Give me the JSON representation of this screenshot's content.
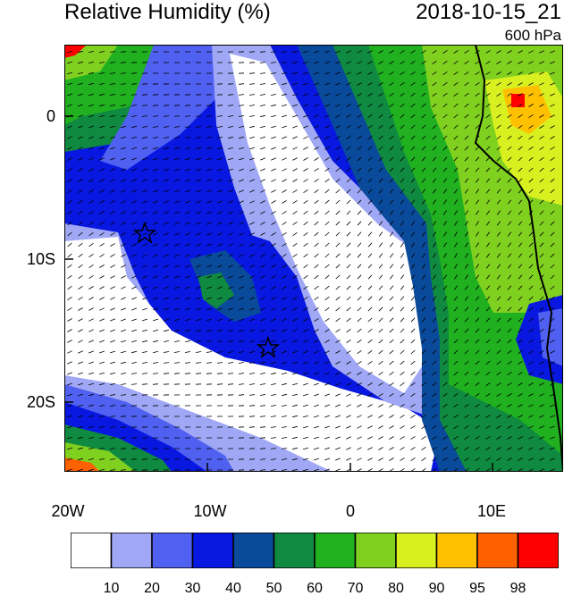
{
  "header": {
    "title": "Relative Humidity (%)",
    "datetime": "2018-10-15_21",
    "level": "600 hPa"
  },
  "axes": {
    "lat_labels": [
      "0",
      "10S",
      "20S"
    ],
    "lon_labels": [
      "20W",
      "10W",
      "0",
      "10E"
    ]
  },
  "colorbar": {
    "labels": [
      "10",
      "20",
      "30",
      "40",
      "50",
      "60",
      "70",
      "80",
      "90",
      "95",
      "98"
    ],
    "colors": [
      "#ffffff",
      "#a0a8f5",
      "#5060f0",
      "#0818e0",
      "#0a4a9a",
      "#108a40",
      "#20b020",
      "#80d020",
      "#d8f020",
      "#ffc000",
      "#ff6000",
      "#ff0000"
    ]
  },
  "markers": [
    "star",
    "star"
  ]
}
